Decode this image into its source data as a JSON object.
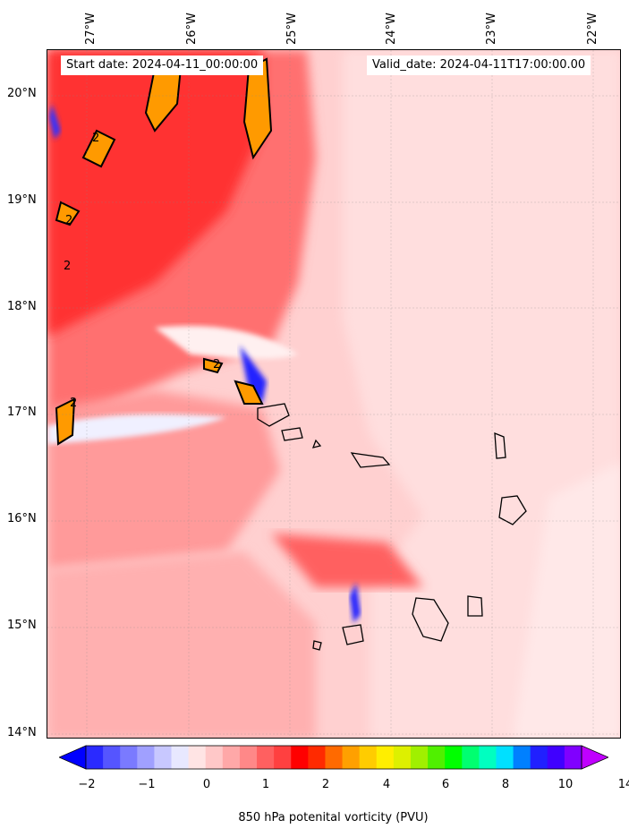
{
  "header": {
    "start_date": "Start date: 2024-04-11_00:00:00",
    "valid_date": "Valid_date: 2024-04-11T17:00:00.00"
  },
  "axes": {
    "lon_labels": [
      "27°W",
      "26°W",
      "25°W",
      "24°W",
      "23°W",
      "22°W"
    ],
    "lat_labels": [
      "20°N",
      "19°N",
      "18°N",
      "17°N",
      "16°N",
      "15°N",
      "14°N"
    ]
  },
  "contour_label": "2",
  "colorbar": {
    "label": "850 hPa potenital vorticity (PVU)",
    "ticks": [
      "−2",
      "−1",
      "0",
      "1",
      "2",
      "4",
      "6",
      "8",
      "10",
      "14"
    ],
    "colors": [
      "#0000ff",
      "#2a2aff",
      "#5555ff",
      "#7a7aff",
      "#a0a0ff",
      "#c8c8ff",
      "#e8e8ff",
      "#ffe4e4",
      "#ffc8c8",
      "#ffa8a8",
      "#ff8888",
      "#ff6060",
      "#ff4040",
      "#ff0000",
      "#ff2a00",
      "#ff6a00",
      "#ffa000",
      "#ffcc00",
      "#ffee00",
      "#ddf000",
      "#a0f000",
      "#50f000",
      "#00ff00",
      "#00ff70",
      "#00ffc0",
      "#00e0ff",
      "#0080ff",
      "#2020ff",
      "#4000ff",
      "#8000ff",
      "#c000ff"
    ]
  },
  "colors": {
    "land_outline": "#000000",
    "strong_pv": "#ff0000",
    "background_pv": "#ffd6d6"
  }
}
